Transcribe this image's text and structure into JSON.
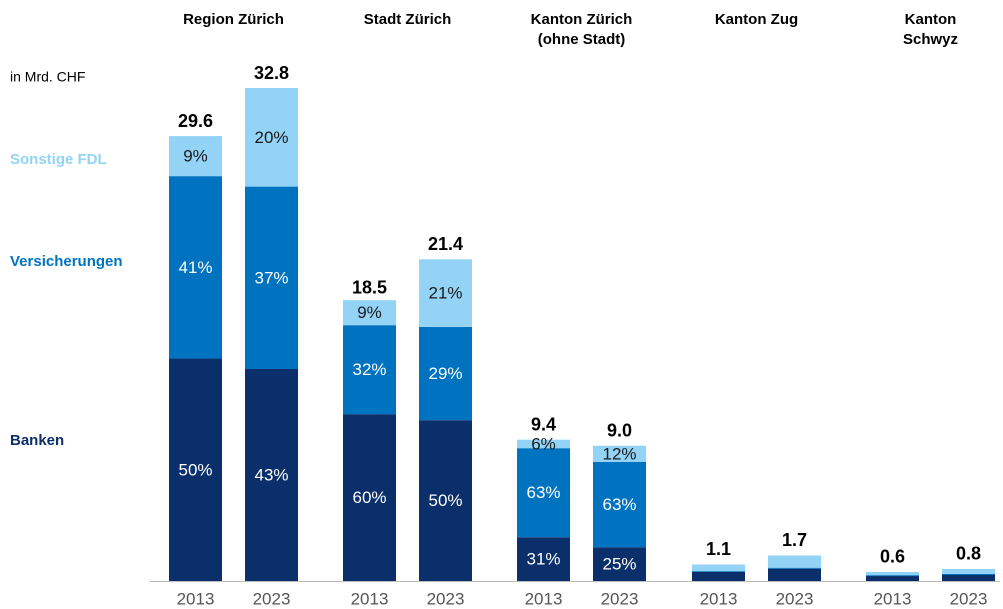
{
  "chart_data": {
    "type": "stacked_bar",
    "unit_label": "in Mrd. CHF",
    "groups": [
      {
        "title": [
          "Region Zürich"
        ]
      },
      {
        "title": [
          "Stadt Zürich"
        ]
      },
      {
        "title": [
          "Kanton Zürich",
          "(ohne Stadt)"
        ]
      },
      {
        "title": [
          "Kanton Zug"
        ]
      },
      {
        "title": [
          "Kanton",
          "Schwyz"
        ]
      }
    ],
    "categories": [
      "2013",
      "2023",
      "2013",
      "2023",
      "2013",
      "2023",
      "2013",
      "2023",
      "2013",
      "2023"
    ],
    "totals": {
      "values": [
        29.6,
        32.8,
        18.5,
        21.4,
        9.4,
        9.0,
        1.1,
        1.7,
        0.6,
        0.8
      ],
      "value_labels": [
        "29.6",
        "32.8",
        "18.5",
        "21.4",
        "9.4",
        "9.0",
        "1.1",
        "1.7",
        "0.6",
        "0.8"
      ]
    },
    "series": [
      {
        "name": "Banken",
        "color": "#0b2f6b",
        "label_color": "#ffffff",
        "values": [
          50,
          43,
          60,
          50,
          31,
          25,
          55,
          48,
          55,
          50
        ],
        "value_labels": [
          "50%",
          "43%",
          "60%",
          "50%",
          "31%",
          "25%",
          null,
          null,
          null,
          null
        ]
      },
      {
        "name": "Versicherungen",
        "color": "#0073c0",
        "label_color": "#ffffff",
        "values": [
          41,
          37,
          32,
          29,
          63,
          63,
          5,
          4,
          10,
          10
        ],
        "value_labels": [
          "41%",
          "37%",
          "32%",
          "29%",
          "63%",
          "63%",
          null,
          null,
          null,
          null
        ]
      },
      {
        "name": "Sonstige FDL",
        "color": "#93d3f5",
        "label_color": "#1a1a1a",
        "values": [
          9,
          20,
          9,
          21,
          6,
          12,
          40,
          48,
          35,
          40
        ],
        "value_labels": [
          "9%",
          "20%",
          "9%",
          "21%",
          "6%",
          "12%",
          null,
          null,
          null,
          null
        ]
      }
    ]
  }
}
